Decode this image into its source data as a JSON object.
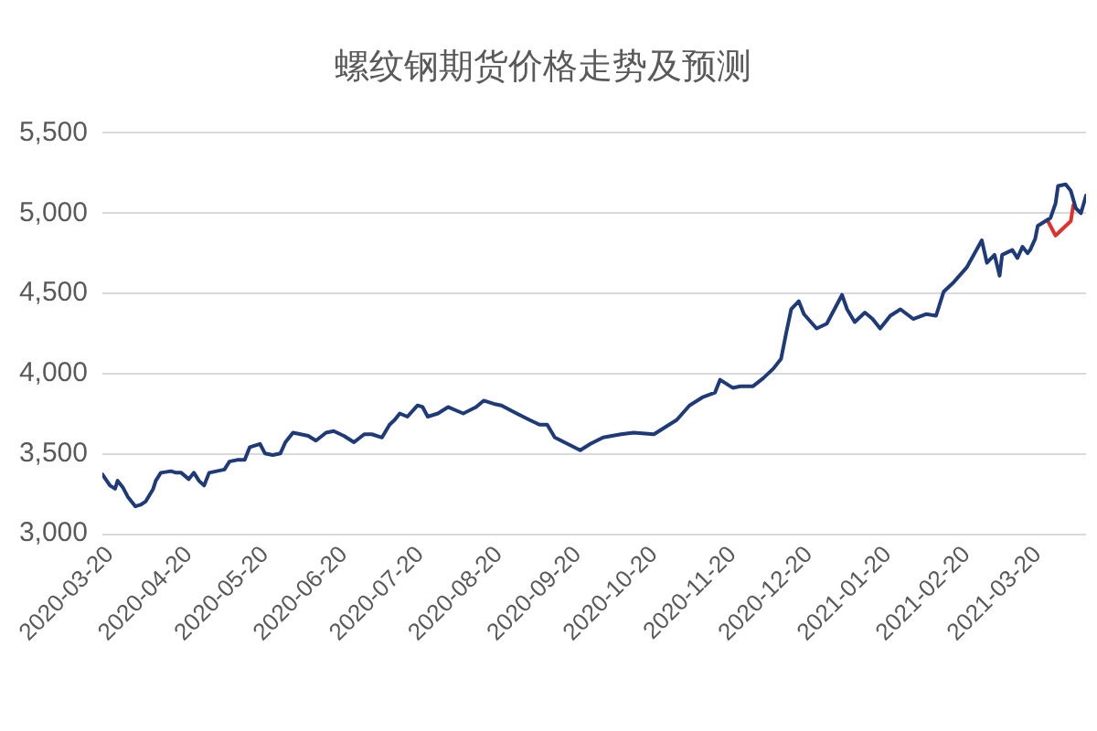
{
  "chart_data": {
    "type": "line",
    "title": "螺纹钢期货价格走势及预测",
    "xlim": [
      "2020-03-17",
      "2021-04-08"
    ],
    "xticks": [
      "2020-03-20",
      "2020-04-20",
      "2020-05-20",
      "2020-06-20",
      "2020-07-20",
      "2020-08-20",
      "2020-09-20",
      "2020-10-20",
      "2020-11-20",
      "2020-12-20",
      "2021-01-20",
      "2021-02-20",
      "2021-03-20"
    ],
    "ylim": [
      3000,
      5500
    ],
    "yticks": [
      {
        "value": 3000,
        "label": "3,000"
      },
      {
        "value": 3500,
        "label": "3,500"
      },
      {
        "value": 4000,
        "label": "4,000"
      },
      {
        "value": 4500,
        "label": "4,500"
      },
      {
        "value": 5000,
        "label": "5,000"
      },
      {
        "value": 5500,
        "label": "5,500"
      }
    ],
    "grid": "y",
    "series": [
      {
        "color": "#1f3a78",
        "x": [
          "2020-03-17",
          "2020-03-20",
          "2020-03-22",
          "2020-03-23",
          "2020-03-25",
          "2020-03-27",
          "2020-03-30",
          "2020-04-01",
          "2020-04-03",
          "2020-04-06",
          "2020-04-07",
          "2020-04-09",
          "2020-04-13",
          "2020-04-15",
          "2020-04-17",
          "2020-04-20",
          "2020-04-22",
          "2020-04-24",
          "2020-04-26",
          "2020-04-27",
          "2020-04-28",
          "2020-05-01",
          "2020-05-04",
          "2020-05-06",
          "2020-05-09",
          "2020-05-12",
          "2020-05-14",
          "2020-05-18",
          "2020-05-20",
          "2020-05-23",
          "2020-05-26",
          "2020-05-28",
          "2020-05-31",
          "2020-06-03",
          "2020-06-06",
          "2020-06-09",
          "2020-06-13",
          "2020-06-16",
          "2020-06-20",
          "2020-06-24",
          "2020-06-28",
          "2020-07-01",
          "2020-07-05",
          "2020-07-08",
          "2020-07-10",
          "2020-07-12",
          "2020-07-15",
          "2020-07-19",
          "2020-07-21",
          "2020-07-23",
          "2020-07-27",
          "2020-07-31",
          "2020-08-03",
          "2020-08-06",
          "2020-08-11",
          "2020-08-14",
          "2020-08-18",
          "2020-08-21",
          "2020-08-27",
          "2020-09-01",
          "2020-09-05",
          "2020-09-08",
          "2020-09-11",
          "2020-09-16",
          "2020-09-21",
          "2020-09-25",
          "2020-09-30",
          "2020-10-07",
          "2020-10-12",
          "2020-10-20",
          "2020-10-29",
          "2020-11-03",
          "2020-11-08",
          "2020-11-13",
          "2020-11-15",
          "2020-11-20",
          "2020-11-23",
          "2020-11-28",
          "2020-12-02",
          "2020-12-06",
          "2020-12-09",
          "2020-12-11",
          "2020-12-13",
          "2020-12-16",
          "2020-12-18",
          "2020-12-23",
          "2020-12-27",
          "2021-01-02",
          "2021-01-04",
          "2021-01-07",
          "2021-01-11",
          "2021-01-14",
          "2021-01-17",
          "2021-01-21",
          "2021-01-25",
          "2021-01-30",
          "2021-02-04",
          "2021-02-08",
          "2021-02-11",
          "2021-02-15",
          "2021-02-20",
          "2021-02-26",
          "2021-02-28",
          "2021-03-03",
          "2021-03-05",
          "2021-03-06",
          "2021-03-10",
          "2021-03-12",
          "2021-03-14",
          "2021-03-16",
          "2021-03-17",
          "2021-03-19",
          "2021-03-20",
          "2021-03-23",
          "2021-03-25",
          "2021-03-27",
          "2021-03-28",
          "2021-03-31",
          "2021-04-02",
          "2021-04-04",
          "2021-04-06",
          "2021-04-08"
        ],
        "values": [
          3370,
          3300,
          3280,
          3330,
          3290,
          3230,
          3170,
          3180,
          3200,
          3280,
          3330,
          3380,
          3390,
          3380,
          3380,
          3340,
          3380,
          3330,
          3300,
          3340,
          3380,
          3390,
          3400,
          3450,
          3460,
          3460,
          3540,
          3560,
          3500,
          3490,
          3500,
          3570,
          3630,
          3620,
          3610,
          3580,
          3630,
          3640,
          3610,
          3570,
          3620,
          3620,
          3600,
          3680,
          3710,
          3750,
          3730,
          3800,
          3790,
          3730,
          3750,
          3790,
          3770,
          3750,
          3790,
          3830,
          3810,
          3800,
          3750,
          3710,
          3680,
          3680,
          3600,
          3560,
          3520,
          3560,
          3600,
          3620,
          3630,
          3620,
          3710,
          3800,
          3850,
          3880,
          3960,
          3910,
          3920,
          3920,
          3970,
          4030,
          4090,
          4250,
          4400,
          4450,
          4370,
          4280,
          4310,
          4490,
          4400,
          4320,
          4380,
          4340,
          4280,
          4360,
          4400,
          4340,
          4370,
          4360,
          4510,
          4570,
          4660,
          4830,
          4690,
          4740,
          4610,
          4740,
          4770,
          4720,
          4790,
          4750,
          4770,
          4840,
          4920,
          4950,
          4970,
          5060,
          5170,
          5180,
          5140,
          5030,
          5000,
          5110
        ]
      },
      {
        "color": "#e0302a",
        "x": [
          "2021-03-24",
          "2021-03-27",
          "2021-03-29",
          "2021-04-02",
          "2021-04-03"
        ],
        "values": [
          4950,
          4860,
          4890,
          4950,
          5050
        ]
      }
    ]
  }
}
